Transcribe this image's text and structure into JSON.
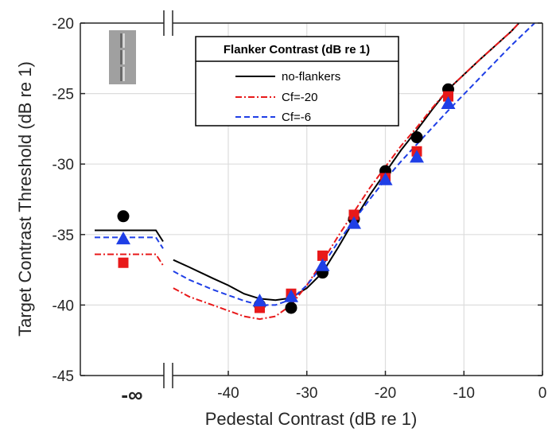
{
  "chart_data": {
    "type": "line",
    "xlabel": "Pedestal Contrast (dB re 1)",
    "ylabel": "Target Contrast Threshold (dB re 1)",
    "xlim": [
      -53,
      0
    ],
    "ylim": [
      -45,
      -20
    ],
    "x_ticks": [
      -40,
      -30,
      -20,
      -10,
      0
    ],
    "x_tick_labels": [
      "-40",
      "-30",
      "-20",
      "-10",
      "0"
    ],
    "y_ticks": [
      -45,
      -40,
      -35,
      -30,
      -25,
      -20
    ],
    "y_tick_labels": [
      "-45",
      "-40",
      "-35",
      "-30",
      "-25",
      "-20"
    ],
    "neg_inf_label": "-∞",
    "grid": true,
    "legend": {
      "title": "Flanker Contrast (dB re 1)",
      "placement": "top-center"
    },
    "series": [
      {
        "name": "no-flankers",
        "color": "#000000",
        "line_style": "solid",
        "marker": "circle",
        "neg_inf_point": -33.7,
        "neg_inf_curve": -34.7,
        "points": [
          [
            -36,
            -40.0
          ],
          [
            -32,
            -40.2
          ],
          [
            -28,
            -37.7
          ],
          [
            -24,
            -33.9
          ],
          [
            -20,
            -30.5
          ],
          [
            -16,
            -28.1
          ],
          [
            -12,
            -24.7
          ]
        ],
        "curve": [
          [
            -47,
            -36.8
          ],
          [
            -45,
            -37.3
          ],
          [
            -42,
            -38.1
          ],
          [
            -40,
            -38.6
          ],
          [
            -38,
            -39.2
          ],
          [
            -36,
            -39.55
          ],
          [
            -34,
            -39.65
          ],
          [
            -32,
            -39.5
          ],
          [
            -30,
            -38.8
          ],
          [
            -28,
            -37.7
          ],
          [
            -26,
            -35.9
          ],
          [
            -24,
            -34.0
          ],
          [
            -22,
            -32.2
          ],
          [
            -20,
            -30.6
          ],
          [
            -18,
            -29.0
          ],
          [
            -16,
            -27.6
          ],
          [
            -14,
            -26.1
          ],
          [
            -12,
            -24.7
          ],
          [
            -8,
            -22.6
          ],
          [
            -4,
            -20.6
          ],
          [
            -3,
            -20.0
          ]
        ]
      },
      {
        "name": "Cf=-20",
        "color": "#e8191a",
        "line_style": "dashdot",
        "marker": "square",
        "neg_inf_point": -37.0,
        "neg_inf_curve": -36.4,
        "points": [
          [
            -36,
            -40.2
          ],
          [
            -32,
            -39.2
          ],
          [
            -28,
            -36.5
          ],
          [
            -24,
            -33.6
          ],
          [
            -20,
            -31.0
          ],
          [
            -16,
            -29.1
          ],
          [
            -12,
            -25.2
          ]
        ],
        "curve": [
          [
            -47,
            -38.8
          ],
          [
            -45,
            -39.4
          ],
          [
            -42,
            -40.0
          ],
          [
            -40,
            -40.4
          ],
          [
            -38,
            -40.8
          ],
          [
            -36,
            -41.0
          ],
          [
            -34,
            -40.8
          ],
          [
            -32,
            -40.0
          ],
          [
            -30,
            -38.6
          ],
          [
            -28,
            -36.9
          ],
          [
            -26,
            -35.1
          ],
          [
            -24,
            -33.4
          ],
          [
            -22,
            -31.7
          ],
          [
            -20,
            -30.2
          ],
          [
            -18,
            -28.7
          ],
          [
            -16,
            -27.4
          ],
          [
            -14,
            -26.0
          ],
          [
            -12,
            -24.7
          ],
          [
            -8,
            -22.6
          ],
          [
            -4,
            -20.6
          ],
          [
            -3,
            -20.0
          ]
        ]
      },
      {
        "name": "Cf=-6",
        "color": "#1f3fe6",
        "line_style": "dashed",
        "marker": "triangle",
        "neg_inf_point": -35.3,
        "neg_inf_curve": -35.2,
        "points": [
          [
            -36,
            -39.7
          ],
          [
            -32,
            -39.4
          ],
          [
            -28,
            -37.2
          ],
          [
            -24,
            -34.2
          ],
          [
            -20,
            -31.1
          ],
          [
            -16,
            -29.5
          ],
          [
            -12,
            -25.7
          ]
        ],
        "curve": [
          [
            -47,
            -37.6
          ],
          [
            -45,
            -38.2
          ],
          [
            -42,
            -38.9
          ],
          [
            -40,
            -39.3
          ],
          [
            -38,
            -39.7
          ],
          [
            -36,
            -40.0
          ],
          [
            -34,
            -40.0
          ],
          [
            -32,
            -39.6
          ],
          [
            -30,
            -38.6
          ],
          [
            -28,
            -37.2
          ],
          [
            -26,
            -35.5
          ],
          [
            -24,
            -34.0
          ],
          [
            -22,
            -32.5
          ],
          [
            -20,
            -31.1
          ],
          [
            -18,
            -29.8
          ],
          [
            -16,
            -28.6
          ],
          [
            -14,
            -27.4
          ],
          [
            -12,
            -26.2
          ],
          [
            -8,
            -23.9
          ],
          [
            -4,
            -21.6
          ],
          [
            -1,
            -20.0
          ]
        ]
      }
    ]
  }
}
